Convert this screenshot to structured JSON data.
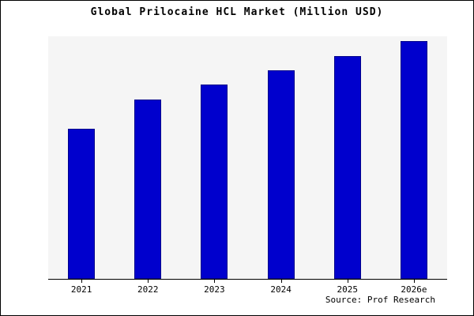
{
  "title": "Global Prilocaine HCL Market (Million USD)",
  "source": "Source: Prof Research",
  "colors": {
    "bar": "#0000cd",
    "bar_edge": "#00008b",
    "plot_bg": "#f5f5f5",
    "frame_border": "#000000"
  },
  "chart_data": {
    "type": "bar",
    "title": "Global Prilocaine HCL Market (Million USD)",
    "categories": [
      "2021",
      "2022",
      "2023",
      "2024",
      "2025",
      "2026e"
    ],
    "values": [
      62,
      74,
      80,
      86,
      92,
      98
    ],
    "xlabel": "",
    "ylabel": "",
    "ylim": [
      0,
      100
    ],
    "grid": false,
    "legend": false,
    "annotations": [
      "Source: Prof Research"
    ]
  }
}
